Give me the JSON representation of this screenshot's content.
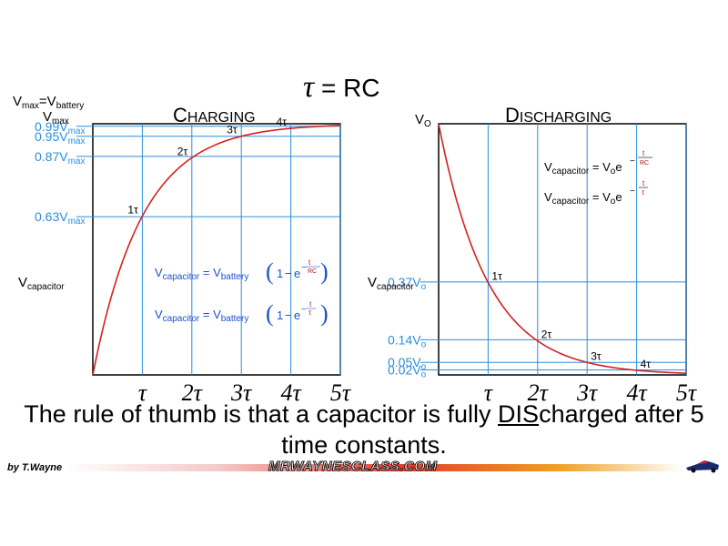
{
  "header": {
    "title_tau": "τ",
    "title_rest": " = RC"
  },
  "chart_data": [
    {
      "type": "line",
      "title": "CHARGING",
      "title_first": "C",
      "title_rest": "HARGING",
      "ylabel_main": "V",
      "ylabel_sub": "capacitor",
      "vmax_label": {
        "main": "V",
        "sub": "max",
        "eq": "=V",
        "sub2": "battery"
      },
      "vmax_top": {
        "main": "V",
        "sub": "max"
      },
      "color_line": "#d42020",
      "color_grid": "#2a8de0",
      "x": [
        1,
        2,
        3,
        4,
        5
      ],
      "xticks": [
        "τ",
        "2τ",
        "3τ",
        "4τ",
        "5τ"
      ],
      "xlim": [
        0,
        5
      ],
      "ylim": [
        0,
        1.0
      ],
      "levels": [
        {
          "value": 0.63,
          "prefix": "0.63V",
          "sub": "max"
        },
        {
          "value": 0.87,
          "prefix": "0.87V",
          "sub": "max"
        },
        {
          "value": 0.95,
          "prefix": "0.95V",
          "sub": "max"
        },
        {
          "value": 0.99,
          "prefix": "0.99V",
          "sub": "max"
        }
      ],
      "point_labels": [
        "1τ",
        "2τ",
        "3τ",
        "4τ"
      ],
      "formula": "V_capacitor = V_battery (1 − e^(−t/RC)) ; V_capacitor = V_battery (1 − e^(−t/τ))",
      "formula_parts": {
        "v": "V",
        "cap": "capacitor",
        "eq": " = V",
        "batt": "battery",
        "one": "1",
        "minus": "−",
        "e": "e",
        "t": "t",
        "rc": "RC",
        "tau": "τ"
      }
    },
    {
      "type": "line",
      "title": "DISCHARGING",
      "title_first": "D",
      "title_rest": "ISCHARGING",
      "ylabel_main": "V",
      "ylabel_sub": "capacitor",
      "vo_label": {
        "main": "V",
        "sub": "O"
      },
      "color_line": "#d42020",
      "color_grid": "#2a8de0",
      "x": [
        1,
        2,
        3,
        4,
        5
      ],
      "xticks": [
        "τ",
        "2τ",
        "3τ",
        "4τ",
        "5τ"
      ],
      "xlim": [
        0,
        5
      ],
      "ylim": [
        0,
        1.0
      ],
      "levels": [
        {
          "value": 0.37,
          "prefix": "0.37V",
          "sub": "o"
        },
        {
          "value": 0.14,
          "prefix": "0.14V",
          "sub": "o"
        },
        {
          "value": 0.05,
          "prefix": "0.05V",
          "sub": "o"
        },
        {
          "value": 0.02,
          "prefix": "0.02V",
          "sub": "o"
        }
      ],
      "point_labels": [
        "1τ",
        "2τ",
        "3τ",
        "4τ"
      ],
      "formula": "V_capacitor = V_o e^(−t/RC) ; V_capacitor = V_o e^(−t/τ)",
      "formula_parts": {
        "v": "V",
        "cap": "capacitor",
        "eq": " = V",
        "o": "o",
        "e": "e",
        "minus": "−",
        "t": "t",
        "rc": "RC",
        "tau": "τ"
      }
    }
  ],
  "caption": {
    "pre": "The rule of thumb is that a capacitor is fully ",
    "underlined": "DIS",
    "post": "charged after 5 time constants."
  },
  "footer": {
    "author": "by T.Wayne",
    "site": "MRWAYNESCLASS.COM"
  }
}
